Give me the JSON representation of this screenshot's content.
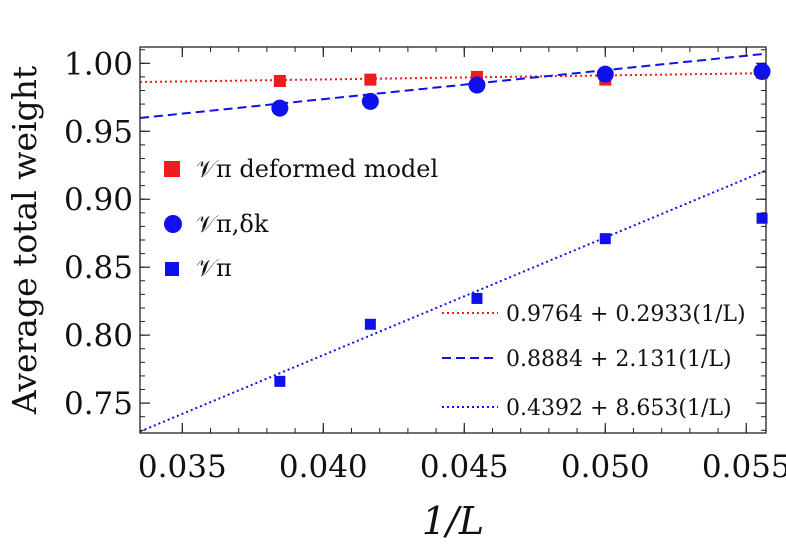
{
  "chart_data": {
    "type": "scatter",
    "title": "",
    "xlabel": "1/L",
    "ylabel": "Average total weight",
    "xlim": [
      0.0335,
      0.0557
    ],
    "ylim": [
      0.728,
      1.012
    ],
    "x_ticks": [
      0.035,
      0.04,
      0.045,
      0.05,
      0.055
    ],
    "x_tick_labels": [
      "0.035",
      "0.040",
      "0.045",
      "0.050",
      "0.055"
    ],
    "y_ticks": [
      0.75,
      0.8,
      0.85,
      0.9,
      0.95,
      1.0
    ],
    "y_tick_labels": [
      "0.75",
      "0.80",
      "0.85",
      "0.90",
      "0.95",
      "1.00"
    ],
    "grid": false,
    "legend_placement": "left",
    "series": [
      {
        "name": "𝒱π deformed model",
        "marker": "square",
        "color": "#ee1c1c",
        "x": [
          0.03846,
          0.04167,
          0.04545,
          0.05,
          0.05556
        ],
        "y": [
          0.987,
          0.988,
          0.99,
          0.988,
          0.993
        ]
      },
      {
        "name": "𝒱π,δk",
        "marker": "circle",
        "color": "#1010ee",
        "x": [
          0.03846,
          0.04167,
          0.04545,
          0.05,
          0.05556
        ],
        "y": [
          0.967,
          0.972,
          0.984,
          0.992,
          0.994
        ]
      },
      {
        "name": "𝒱π",
        "marker": "square",
        "color": "#1010ee",
        "x": [
          0.03846,
          0.04167,
          0.04545,
          0.05,
          0.05556
        ],
        "y": [
          0.766,
          0.808,
          0.827,
          0.871,
          0.886
        ]
      }
    ],
    "fits": [
      {
        "label": "0.9764 + 0.2933(1/L)",
        "intercept": 0.9764,
        "slope": 0.2933,
        "color": "#ee1c1c",
        "style": "dotted"
      },
      {
        "label": "0.8884 + 2.131(1/L)",
        "intercept": 0.8884,
        "slope": 2.131,
        "color": "#1010ee",
        "style": "dashed"
      },
      {
        "label": "0.4392 + 8.653(1/L)",
        "intercept": 0.4392,
        "slope": 8.653,
        "color": "#1010ee",
        "style": "dotted"
      }
    ]
  }
}
